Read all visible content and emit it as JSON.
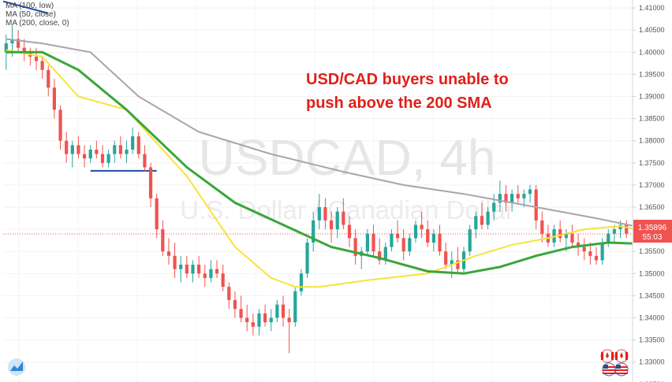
{
  "legend": {
    "ma100": "MA (100, low)",
    "ma50": "MA (50, close)",
    "ma200": "MA (200, close, 0)"
  },
  "watermark": {
    "symbol": "USDCAD, 4h",
    "name": "U.S. Dollar / Canadian Dollar"
  },
  "annotation": {
    "line1": "USD/CAD buyers unable to",
    "line2": "push above the 200 SMA"
  },
  "price_badge": {
    "price": "1.35896",
    "countdown": "55:03"
  },
  "colors": {
    "up": "#26a69a",
    "down": "#ef5350",
    "ma50": "#f7e33a",
    "ma100": "#3aa63a",
    "ma200": "#a9a4ad",
    "support": "#1f4fa3",
    "annotation": "#e0201a",
    "badge": "#ef5350"
  },
  "icons": [
    "tradingview-logo-icon",
    "canada-flag-icon",
    "us-flag-icon"
  ],
  "chart_data": {
    "type": "candlestick",
    "ylim": [
      1.3255,
      1.4118
    ],
    "y_ticks": [
      "1.41000",
      "1.40500",
      "1.40000",
      "1.39500",
      "1.39000",
      "1.38500",
      "1.38000",
      "1.37500",
      "1.37000",
      "1.36500",
      "1.36000",
      "1.35500",
      "1.35000",
      "1.34500",
      "1.34000",
      "1.33500",
      "1.33000",
      "1.32500"
    ],
    "y_tick_values": [
      1.41,
      1.405,
      1.4,
      1.395,
      1.39,
      1.385,
      1.38,
      1.375,
      1.37,
      1.365,
      1.36,
      1.355,
      1.35,
      1.345,
      1.34,
      1.335,
      1.33,
      1.325
    ],
    "current_price": 1.35896,
    "support_level": 1.3732,
    "candles": [
      [
        1.4,
        1.404,
        1.396,
        1.402
      ],
      [
        1.402,
        1.406,
        1.399,
        1.403
      ],
      [
        1.403,
        1.405,
        1.4,
        1.401
      ],
      [
        1.401,
        1.403,
        1.398,
        1.4
      ],
      [
        1.4,
        1.401,
        1.397,
        1.399
      ],
      [
        1.399,
        1.401,
        1.396,
        1.398
      ],
      [
        1.398,
        1.399,
        1.394,
        1.396
      ],
      [
        1.396,
        1.397,
        1.39,
        1.392
      ],
      [
        1.392,
        1.394,
        1.385,
        1.387
      ],
      [
        1.387,
        1.388,
        1.378,
        1.38
      ],
      [
        1.38,
        1.382,
        1.375,
        1.377
      ],
      [
        1.377,
        1.38,
        1.374,
        1.379
      ],
      [
        1.379,
        1.381,
        1.376,
        1.377
      ],
      [
        1.377,
        1.379,
        1.374,
        1.376
      ],
      [
        1.376,
        1.379,
        1.375,
        1.378
      ],
      [
        1.378,
        1.38,
        1.376,
        1.377
      ],
      [
        1.377,
        1.379,
        1.374,
        1.375
      ],
      [
        1.375,
        1.378,
        1.374,
        1.377
      ],
      [
        1.377,
        1.38,
        1.375,
        1.379
      ],
      [
        1.379,
        1.381,
        1.376,
        1.377
      ],
      [
        1.377,
        1.38,
        1.375,
        1.378
      ],
      [
        1.378,
        1.383,
        1.377,
        1.381
      ],
      [
        1.381,
        1.382,
        1.376,
        1.377
      ],
      [
        1.377,
        1.379,
        1.373,
        1.374
      ],
      [
        1.374,
        1.375,
        1.365,
        1.367
      ],
      [
        1.367,
        1.368,
        1.358,
        1.36
      ],
      [
        1.36,
        1.362,
        1.354,
        1.355
      ],
      [
        1.355,
        1.358,
        1.352,
        1.354
      ],
      [
        1.354,
        1.357,
        1.349,
        1.351
      ],
      [
        1.351,
        1.354,
        1.348,
        1.352
      ],
      [
        1.352,
        1.354,
        1.349,
        1.35
      ],
      [
        1.35,
        1.353,
        1.348,
        1.352
      ],
      [
        1.352,
        1.354,
        1.349,
        1.35
      ],
      [
        1.35,
        1.352,
        1.347,
        1.349
      ],
      [
        1.349,
        1.353,
        1.348,
        1.351
      ],
      [
        1.351,
        1.353,
        1.349,
        1.35
      ],
      [
        1.35,
        1.352,
        1.346,
        1.347
      ],
      [
        1.347,
        1.348,
        1.342,
        1.344
      ],
      [
        1.344,
        1.346,
        1.34,
        1.342
      ],
      [
        1.342,
        1.345,
        1.339,
        1.34
      ],
      [
        1.34,
        1.343,
        1.337,
        1.339
      ],
      [
        1.339,
        1.341,
        1.336,
        1.338
      ],
      [
        1.338,
        1.342,
        1.336,
        1.341
      ],
      [
        1.341,
        1.343,
        1.338,
        1.339
      ],
      [
        1.339,
        1.342,
        1.337,
        1.34
      ],
      [
        1.34,
        1.344,
        1.339,
        1.343
      ],
      [
        1.343,
        1.345,
        1.338,
        1.34
      ],
      [
        1.34,
        1.342,
        1.332,
        1.339
      ],
      [
        1.339,
        1.347,
        1.338,
        1.346
      ],
      [
        1.346,
        1.351,
        1.345,
        1.35
      ],
      [
        1.35,
        1.358,
        1.349,
        1.357
      ],
      [
        1.357,
        1.364,
        1.355,
        1.362
      ],
      [
        1.362,
        1.368,
        1.36,
        1.365
      ],
      [
        1.365,
        1.367,
        1.36,
        1.362
      ],
      [
        1.362,
        1.364,
        1.357,
        1.36
      ],
      [
        1.36,
        1.365,
        1.358,
        1.364
      ],
      [
        1.364,
        1.367,
        1.36,
        1.361
      ],
      [
        1.361,
        1.363,
        1.356,
        1.358
      ],
      [
        1.358,
        1.36,
        1.352,
        1.354
      ],
      [
        1.354,
        1.356,
        1.351,
        1.355
      ],
      [
        1.355,
        1.36,
        1.354,
        1.359
      ],
      [
        1.359,
        1.361,
        1.354,
        1.355
      ],
      [
        1.355,
        1.358,
        1.352,
        1.353
      ],
      [
        1.353,
        1.357,
        1.352,
        1.356
      ],
      [
        1.356,
        1.36,
        1.355,
        1.359
      ],
      [
        1.359,
        1.362,
        1.357,
        1.358
      ],
      [
        1.358,
        1.36,
        1.353,
        1.355
      ],
      [
        1.355,
        1.359,
        1.354,
        1.358
      ],
      [
        1.358,
        1.362,
        1.357,
        1.361
      ],
      [
        1.361,
        1.364,
        1.358,
        1.36
      ],
      [
        1.36,
        1.362,
        1.356,
        1.357
      ],
      [
        1.357,
        1.36,
        1.355,
        1.359
      ],
      [
        1.359,
        1.361,
        1.354,
        1.355
      ],
      [
        1.355,
        1.357,
        1.351,
        1.352
      ],
      [
        1.352,
        1.355,
        1.349,
        1.353
      ],
      [
        1.353,
        1.356,
        1.35,
        1.351
      ],
      [
        1.351,
        1.356,
        1.35,
        1.355
      ],
      [
        1.355,
        1.361,
        1.354,
        1.36
      ],
      [
        1.36,
        1.364,
        1.358,
        1.363
      ],
      [
        1.363,
        1.366,
        1.36,
        1.361
      ],
      [
        1.361,
        1.365,
        1.36,
        1.364
      ],
      [
        1.364,
        1.368,
        1.362,
        1.366
      ],
      [
        1.366,
        1.371,
        1.364,
        1.368
      ],
      [
        1.368,
        1.37,
        1.364,
        1.366
      ],
      [
        1.366,
        1.369,
        1.364,
        1.368
      ],
      [
        1.368,
        1.37,
        1.366,
        1.367
      ],
      [
        1.367,
        1.369,
        1.365,
        1.368
      ],
      [
        1.368,
        1.37,
        1.366,
        1.369
      ],
      [
        1.369,
        1.37,
        1.36,
        1.362
      ],
      [
        1.362,
        1.364,
        1.357,
        1.359
      ],
      [
        1.359,
        1.361,
        1.356,
        1.357
      ],
      [
        1.357,
        1.361,
        1.356,
        1.36
      ],
      [
        1.36,
        1.362,
        1.357,
        1.358
      ],
      [
        1.358,
        1.36,
        1.355,
        1.359
      ],
      [
        1.359,
        1.361,
        1.356,
        1.357
      ],
      [
        1.357,
        1.359,
        1.354,
        1.356
      ],
      [
        1.356,
        1.358,
        1.353,
        1.355
      ],
      [
        1.355,
        1.357,
        1.352,
        1.354
      ],
      [
        1.354,
        1.356,
        1.352,
        1.353
      ],
      [
        1.353,
        1.358,
        1.352,
        1.357
      ],
      [
        1.357,
        1.36,
        1.356,
        1.359
      ],
      [
        1.359,
        1.361,
        1.357,
        1.36
      ],
      [
        1.36,
        1.362,
        1.358,
        1.361
      ],
      [
        1.361,
        1.362,
        1.358,
        1.359
      ]
    ],
    "ma50": [
      [
        0,
        1.4005
      ],
      [
        6,
        1.399
      ],
      [
        12,
        1.39
      ],
      [
        20,
        1.387
      ],
      [
        30,
        1.372
      ],
      [
        38,
        1.356
      ],
      [
        44,
        1.349
      ],
      [
        48,
        1.347
      ],
      [
        52,
        1.347
      ],
      [
        60,
        1.3485
      ],
      [
        70,
        1.35
      ],
      [
        78,
        1.354
      ],
      [
        84,
        1.3565
      ],
      [
        90,
        1.358
      ],
      [
        96,
        1.36
      ],
      [
        102,
        1.3607
      ],
      [
        104,
        1.3602
      ]
    ],
    "ma100": [
      [
        0,
        1.4
      ],
      [
        6,
        1.4
      ],
      [
        12,
        1.396
      ],
      [
        20,
        1.387
      ],
      [
        30,
        1.374
      ],
      [
        38,
        1.366
      ],
      [
        46,
        1.361
      ],
      [
        54,
        1.356
      ],
      [
        62,
        1.3535
      ],
      [
        70,
        1.3505
      ],
      [
        76,
        1.35
      ],
      [
        82,
        1.3515
      ],
      [
        88,
        1.354
      ],
      [
        94,
        1.356
      ],
      [
        100,
        1.357
      ],
      [
        104,
        1.3568
      ]
    ],
    "ma200": [
      [
        0,
        1.403
      ],
      [
        6,
        1.402
      ],
      [
        14,
        1.4
      ],
      [
        22,
        1.39
      ],
      [
        32,
        1.382
      ],
      [
        44,
        1.377
      ],
      [
        56,
        1.373
      ],
      [
        66,
        1.37
      ],
      [
        76,
        1.368
      ],
      [
        84,
        1.366
      ],
      [
        92,
        1.364
      ],
      [
        98,
        1.3625
      ],
      [
        104,
        1.3608
      ]
    ]
  }
}
